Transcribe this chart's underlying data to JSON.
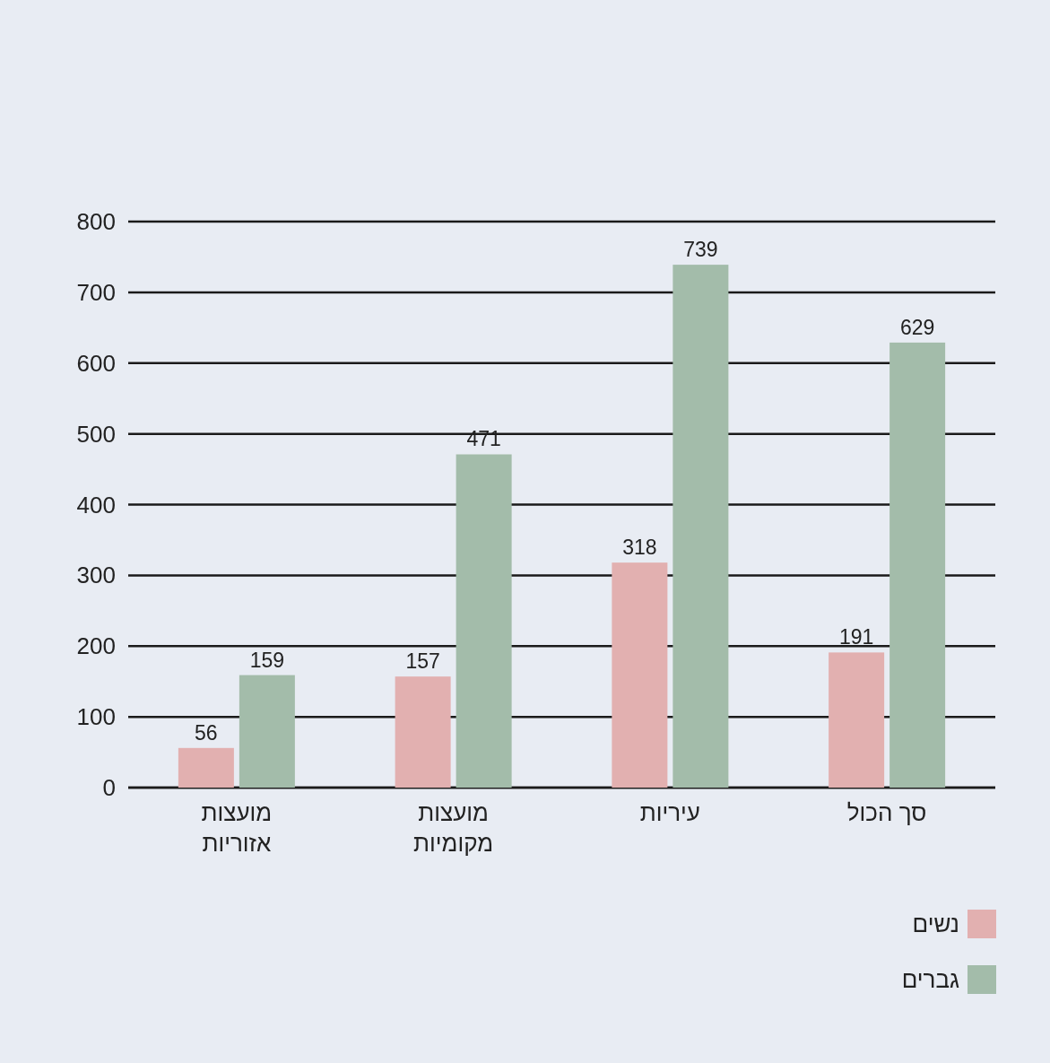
{
  "chart_data": {
    "type": "bar",
    "categories": [
      "מועצות אזוריות",
      "מועצות מקומיות",
      "עיריות",
      "סך הכול"
    ],
    "series": [
      {
        "name": "נשים",
        "color": "#e2b0b0",
        "values": [
          56,
          157,
          318,
          191
        ]
      },
      {
        "name": "גברים",
        "color": "#a3bcaa",
        "values": [
          159,
          471,
          739,
          629
        ]
      }
    ],
    "ylim": [
      0,
      800
    ],
    "yticks": [
      0,
      100,
      200,
      300,
      400,
      500,
      600,
      700,
      800
    ],
    "grid": "y",
    "legend": "bottom right",
    "data_labels": true
  }
}
